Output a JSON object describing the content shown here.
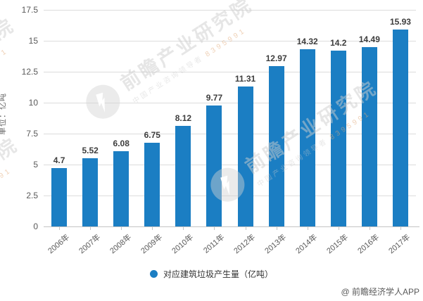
{
  "chart_data": {
    "type": "bar",
    "categories": [
      "2006年",
      "2007年",
      "2008年",
      "2009年",
      "2010年",
      "2011年",
      "2012年",
      "2013年",
      "2014年",
      "2015年",
      "2016年",
      "2017年"
    ],
    "values": [
      4.7,
      5.52,
      6.08,
      6.75,
      8.12,
      9.77,
      11.31,
      12.97,
      14.32,
      14.2,
      14.49,
      15.93
    ],
    "title": "",
    "xlabel": "",
    "ylabel": "单位：亿吨",
    "ylim": [
      0,
      17.5
    ],
    "yticks": [
      0,
      2.5,
      5,
      7.5,
      10,
      12.5,
      15,
      17.5
    ],
    "grid": true,
    "legend_position": "bottom",
    "legend": [
      {
        "label": "对应建筑垃圾产生量（亿吨）",
        "color": "#1b7ec3"
      }
    ]
  },
  "colors": {
    "bar": "#1b7ec3",
    "gridline": "#dcdcdc",
    "axis": "#c4c4c4",
    "value_label": "#3d3d3d",
    "tick_label": "#595959"
  },
  "watermark": {
    "brand": "前瞻产业研究院",
    "tagline": "中国产业咨询领导者",
    "digits": "8395991"
  },
  "credit": "@ 前瞻经济学人APP"
}
